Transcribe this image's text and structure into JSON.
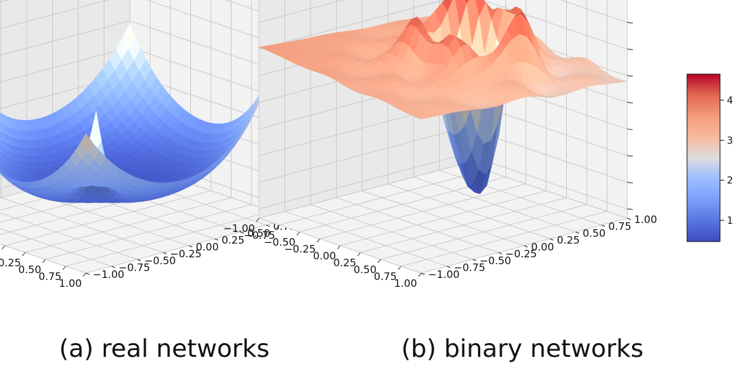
{
  "chart_data": [
    {
      "type": "surface",
      "caption": "(a) real networks",
      "x_ticks": [
        "−1.00",
        "−0.75",
        "−0.50",
        "−0.25",
        "0.00",
        "0.25",
        "0.50",
        "0.75",
        "1.00"
      ],
      "y_ticks": [
        "−1.00",
        "−0.75",
        "−0.50",
        "−0.25",
        "0.00",
        "0.25",
        "0.50",
        "0.75",
        "1.00"
      ],
      "xlim": [
        -1,
        1
      ],
      "ylim": [
        -1,
        1
      ],
      "zlim": [
        0,
        4.7
      ],
      "z_tick_labels_visible": false,
      "grid": true,
      "colormap": "coolwarm",
      "surface": {
        "shape": "smooth bowl",
        "min_value": 0.5,
        "max_value": 4.6,
        "center_value": 0.6,
        "corner_values": {
          "x-1_y-1": 4.6,
          "x1_y1": 3.2,
          "x-1_y1": 1.5,
          "x1_y-1": 1.4
        },
        "sharp_spike": {
          "x": 0.55,
          "y": -0.55,
          "peak": 3.4
        }
      }
    },
    {
      "type": "surface",
      "caption": "(b) binary networks",
      "x_ticks": [
        "−1.00",
        "−0.75",
        "−0.50",
        "−0.25",
        "0.00",
        "0.25",
        "0.50",
        "0.75",
        "1.00"
      ],
      "y_ticks": [
        "−1.00",
        "−0.75",
        "−0.50",
        "−0.25",
        "0.00",
        "0.25",
        "0.50",
        "0.75",
        "1.00"
      ],
      "xlim": [
        -1,
        1
      ],
      "ylim": [
        -1,
        1
      ],
      "zlim": [
        0,
        4.7
      ],
      "z_tick_labels_visible": false,
      "grid": true,
      "colormap": "coolwarm",
      "surface": {
        "shape": "high rugged plateau with a deep central well",
        "min_value": 0.5,
        "max_value": 4.6,
        "plateau_value": 3.2,
        "well_center": {
          "x": 0.15,
          "y": 0.15,
          "depth_value": 0.5
        },
        "rim_peak_value": 4.6
      }
    }
  ],
  "colorbar": {
    "colormap": "coolwarm",
    "range": [
      0.47,
      4.65
    ],
    "ticks": [
      "1",
      "2",
      "3",
      "4"
    ],
    "tick_values": [
      1,
      2,
      3,
      4
    ]
  },
  "colors": {
    "low": "#3b4cc0",
    "mid": "#dddddd",
    "high": "#b40426",
    "pane": "#f2f2f2",
    "grid": "#c9c9c9"
  }
}
